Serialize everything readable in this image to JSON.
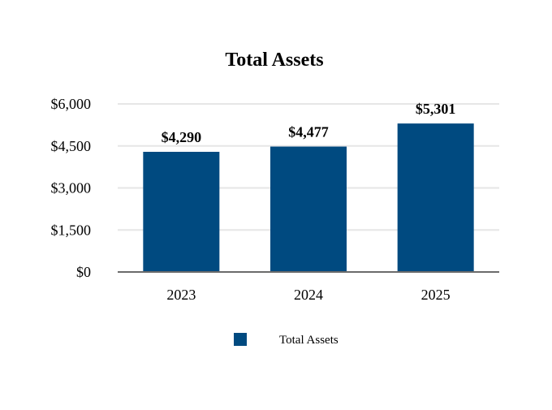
{
  "chart_data": {
    "type": "bar",
    "title": "Total Assets",
    "xlabel": "",
    "ylabel": "",
    "categories": [
      "2023",
      "2024",
      "2025"
    ],
    "series": [
      {
        "name": "Total Assets",
        "values": [
          4290,
          4477,
          5301
        ]
      }
    ],
    "data_labels": [
      "$4,290",
      "$4,477",
      "$5,301"
    ],
    "y_ticks": [
      0,
      1500,
      3000,
      4500,
      6000
    ],
    "y_tick_labels": [
      "$0",
      "$1,500",
      "$3,000",
      "$4,500",
      "$6,000"
    ],
    "ylim": [
      0,
      6000
    ],
    "grid": true,
    "legend_position": "bottom",
    "colors": {
      "bar": "#004a80",
      "grid": "#e6e6e6",
      "axis": "#6b6b6b"
    }
  }
}
